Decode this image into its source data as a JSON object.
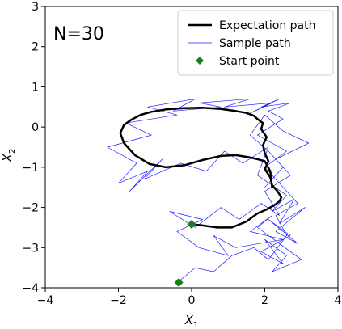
{
  "chart_data": {
    "type": "line",
    "annotation": "N=30",
    "xlabel": {
      "base": "X",
      "sub": "1"
    },
    "ylabel": {
      "base": "X",
      "sub": "2"
    },
    "xlim": [
      -4,
      4
    ],
    "ylim": [
      -4,
      3
    ],
    "xticks": [
      -4,
      -2,
      0,
      2,
      4
    ],
    "yticks": [
      -4,
      -3,
      -2,
      -1,
      0,
      1,
      2,
      3
    ],
    "xtick_labels": [
      "−4",
      "−2",
      "0",
      "2",
      "4"
    ],
    "ytick_labels": [
      "−4",
      "−3",
      "−2",
      "−1",
      "0",
      "1",
      "2",
      "3"
    ],
    "legend": {
      "position": "top-right",
      "entries": [
        "Expectation path",
        "Sample path",
        "Start point"
      ]
    },
    "colors": {
      "expectation": "#000000",
      "sample": "#1f1fff",
      "start": "#1a7f1a"
    },
    "series": [
      {
        "name": "Expectation path",
        "x": [
          0.0,
          0.3,
          0.7,
          1.1,
          1.5,
          1.8,
          2.05,
          2.25,
          2.4,
          2.45,
          2.35,
          2.2,
          2.15,
          2.0,
          2.1,
          2.0,
          1.95,
          2.05,
          1.9,
          1.95,
          1.8,
          1.7,
          1.5,
          1.2,
          0.8,
          0.3,
          -0.2,
          -0.7,
          -1.1,
          -1.4,
          -1.65,
          -1.85,
          -1.95,
          -1.85,
          -1.55,
          -1.15,
          -0.7,
          -0.2,
          0.3,
          0.8,
          1.2,
          1.55,
          1.8,
          2.0,
          2.15,
          2.2
        ],
        "y": [
          -2.42,
          -2.45,
          -2.5,
          -2.5,
          -2.35,
          -2.15,
          -2.05,
          -1.95,
          -1.85,
          -1.75,
          -1.6,
          -1.45,
          -1.25,
          -1.05,
          -0.85,
          -0.65,
          -0.45,
          -0.25,
          -0.05,
          0.1,
          0.2,
          0.28,
          0.35,
          0.4,
          0.45,
          0.48,
          0.47,
          0.44,
          0.38,
          0.3,
          0.18,
          0.05,
          -0.15,
          -0.4,
          -0.7,
          -0.92,
          -1.0,
          -0.95,
          -0.82,
          -0.72,
          -0.7,
          -0.75,
          -0.8,
          -0.85,
          -1.1,
          -1.5
        ]
      },
      {
        "name": "Sample path",
        "x": [
          -0.3,
          0.1,
          0.6,
          1.1,
          1.7,
          2.1,
          2.6,
          2.3,
          2.9,
          2.4,
          2.0,
          2.6,
          1.8,
          2.5,
          2.1,
          2.7,
          1.9,
          2.4,
          1.5,
          2.2,
          0.9,
          1.6,
          0.2,
          0.8,
          -0.5,
          0.1,
          -1.2,
          -0.4,
          -1.8,
          -1.1,
          -2.3,
          -1.5,
          -2.0,
          -1.2,
          -1.7,
          -0.8,
          -1.3,
          -0.3,
          0.4,
          0.9,
          1.4,
          2.1,
          1.8,
          2.6,
          2.2,
          2.8,
          2.4,
          3.1,
          2.3,
          2.9,
          2.1,
          2.7,
          1.9,
          2.5,
          2.0,
          2.6,
          2.2,
          3.0,
          2.4,
          1.8,
          2.2,
          1.6,
          2.5,
          1.2,
          0.6,
          1.0,
          0.2,
          -0.4,
          0.3,
          -0.6,
          0.1,
          0.8,
          1.3,
          1.9,
          2.4,
          2.0,
          2.7,
          2.3,
          3.2,
          2.5,
          2.0,
          1.6,
          2.1,
          2.5,
          2.0
        ],
        "y": [
          -3.8,
          -3.5,
          -3.6,
          -3.2,
          -3.0,
          -3.3,
          -2.7,
          -2.2,
          -1.9,
          -1.4,
          -1.0,
          -0.6,
          -0.2,
          0.2,
          0.4,
          0.6,
          0.5,
          0.7,
          0.3,
          0.6,
          0.5,
          0.7,
          0.6,
          0.5,
          0.4,
          0.7,
          0.5,
          0.3,
          0.1,
          -0.2,
          -0.5,
          -0.9,
          -1.4,
          -1.1,
          -1.6,
          -0.8,
          -1.3,
          -0.9,
          -1.1,
          -0.6,
          -0.9,
          -0.5,
          -1.2,
          -1.7,
          -2.1,
          -1.8,
          -2.4,
          -2.0,
          -2.6,
          -2.9,
          -2.3,
          -2.7,
          -3.1,
          -3.4,
          -2.8,
          -3.2,
          -3.6,
          -3.3,
          -2.9,
          -2.5,
          -2.2,
          -2.6,
          -2.8,
          -3.0,
          -2.7,
          -3.2,
          -3.0,
          -2.6,
          -2.3,
          -2.1,
          -2.5,
          -2.0,
          -2.3,
          -1.9,
          -2.2,
          -1.6,
          -1.2,
          -0.8,
          -0.4,
          -0.1,
          0.3,
          -0.2,
          -0.6,
          -1.0,
          -1.5
        ]
      },
      {
        "name": "Start point",
        "x": [
          0.0,
          -0.35
        ],
        "y": [
          -2.42,
          -3.87
        ]
      }
    ]
  }
}
